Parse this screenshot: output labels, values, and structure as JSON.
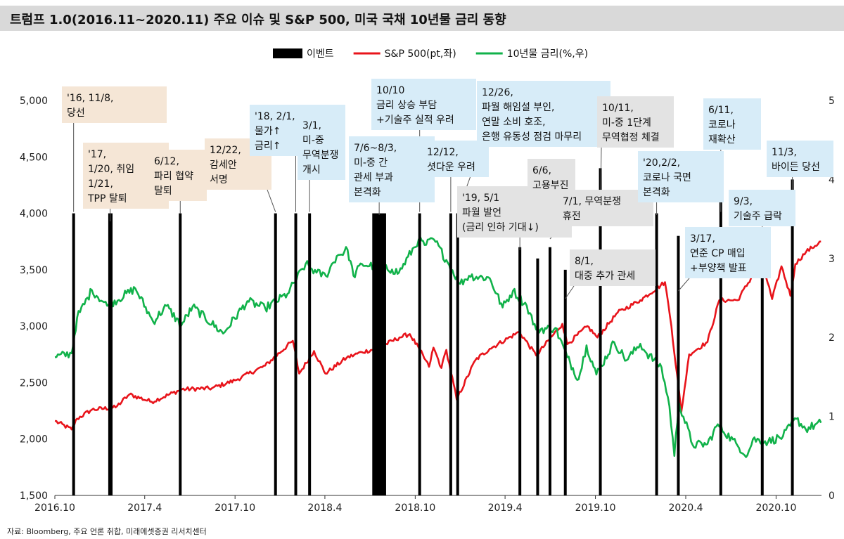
{
  "title": "트럼프 1.0(2016.11~2020.11) 주요 이슈 및 S&P 500, 미국 국채 10년물 금리 동향",
  "source": "자료: Bloomberg, 주요 언론 취합, 미래에셋증권 리서치센터",
  "colors": {
    "sp500": "#e8141b",
    "rate": "#11b24a",
    "event": "#000000",
    "box_tan": "#f5e6d6",
    "box_blue": "#d7ecf8",
    "box_gray": "#e3e3e3",
    "title_bg": "#d9d9d9"
  },
  "chart_data": {
    "type": "line",
    "legend": [
      {
        "key": "event",
        "label": "이벤트"
      },
      {
        "key": "sp500",
        "label": "S&P 500(pt,좌)"
      },
      {
        "key": "rate",
        "label": "10년물 금리(%,우)"
      }
    ],
    "x_range": [
      "2016-10",
      "2021-01"
    ],
    "x_ticks": [
      {
        "date": "2016-10",
        "label": "2016.10"
      },
      {
        "date": "2017-04",
        "label": "2017.4"
      },
      {
        "date": "2017-10",
        "label": "2017.10"
      },
      {
        "date": "2018-04",
        "label": "2018.4"
      },
      {
        "date": "2018-10",
        "label": "2018.10"
      },
      {
        "date": "2019-04",
        "label": "2019.4"
      },
      {
        "date": "2019-10",
        "label": "2019.10"
      },
      {
        "date": "2020-04",
        "label": "2020.4"
      },
      {
        "date": "2020-10",
        "label": "2020.10"
      }
    ],
    "y_left": {
      "min": 1500,
      "max": 5000,
      "ticks": [
        "1,500",
        "2,000",
        "2,500",
        "3,000",
        "3,500",
        "4,000",
        "4,500",
        "5,000"
      ]
    },
    "y_right": {
      "min": 0,
      "max": 5,
      "ticks": [
        "0",
        "1",
        "2",
        "3",
        "4",
        "5"
      ]
    },
    "series": [
      {
        "name": "S&P 500",
        "axis": "left",
        "key": "sp500",
        "points": [
          [
            "2016-10-01",
            2160
          ],
          [
            "2016-11-04",
            2085
          ],
          [
            "2016-11-15",
            2180
          ],
          [
            "2016-12-15",
            2260
          ],
          [
            "2017-02-01",
            2280
          ],
          [
            "2017-03-01",
            2395
          ],
          [
            "2017-04-15",
            2330
          ],
          [
            "2017-06-15",
            2440
          ],
          [
            "2017-08-15",
            2450
          ],
          [
            "2017-10-01",
            2520
          ],
          [
            "2017-12-01",
            2650
          ],
          [
            "2018-01-26",
            2870
          ],
          [
            "2018-02-08",
            2580
          ],
          [
            "2018-03-10",
            2780
          ],
          [
            "2018-04-02",
            2580
          ],
          [
            "2018-05-15",
            2720
          ],
          [
            "2018-06-15",
            2770
          ],
          [
            "2018-07-15",
            2800
          ],
          [
            "2018-08-30",
            2900
          ],
          [
            "2018-09-20",
            2930
          ],
          [
            "2018-10-10",
            2790
          ],
          [
            "2018-10-29",
            2640
          ],
          [
            "2018-11-07",
            2810
          ],
          [
            "2018-11-23",
            2630
          ],
          [
            "2018-12-03",
            2790
          ],
          [
            "2018-12-24",
            2350
          ],
          [
            "2019-01-31",
            2700
          ],
          [
            "2019-03-01",
            2800
          ],
          [
            "2019-04-30",
            2950
          ],
          [
            "2019-06-03",
            2740
          ],
          [
            "2019-07-26",
            3020
          ],
          [
            "2019-08-05",
            2840
          ],
          [
            "2019-09-15",
            3000
          ],
          [
            "2019-10-05",
            2900
          ],
          [
            "2019-11-15",
            3120
          ],
          [
            "2019-12-31",
            3230
          ],
          [
            "2020-02-19",
            3390
          ],
          [
            "2020-03-03",
            3000
          ],
          [
            "2020-03-23",
            2240
          ],
          [
            "2020-04-08",
            2750
          ],
          [
            "2020-05-15",
            2860
          ],
          [
            "2020-06-08",
            3230
          ],
          [
            "2020-07-15",
            3230
          ],
          [
            "2020-09-02",
            3580
          ],
          [
            "2020-09-23",
            3240
          ],
          [
            "2020-10-12",
            3530
          ],
          [
            "2020-10-30",
            3270
          ],
          [
            "2020-11-09",
            3550
          ],
          [
            "2020-12-01",
            3660
          ],
          [
            "2020-12-31",
            3750
          ]
        ]
      },
      {
        "name": "10년물 금리",
        "axis": "right",
        "key": "rate",
        "points": [
          [
            "2016-10-01",
            1.75
          ],
          [
            "2016-11-04",
            1.8
          ],
          [
            "2016-11-15",
            2.25
          ],
          [
            "2016-12-15",
            2.6
          ],
          [
            "2017-01-15",
            2.4
          ],
          [
            "2017-03-13",
            2.62
          ],
          [
            "2017-04-18",
            2.2
          ],
          [
            "2017-05-15",
            2.4
          ],
          [
            "2017-06-14",
            2.15
          ],
          [
            "2017-07-07",
            2.39
          ],
          [
            "2017-09-07",
            2.05
          ],
          [
            "2017-10-26",
            2.46
          ],
          [
            "2017-12-01",
            2.37
          ],
          [
            "2018-01-15",
            2.55
          ],
          [
            "2018-02-21",
            2.93
          ],
          [
            "2018-03-15",
            2.82
          ],
          [
            "2018-04-03",
            2.78
          ],
          [
            "2018-04-25",
            3.03
          ],
          [
            "2018-05-17",
            3.11
          ],
          [
            "2018-05-29",
            2.78
          ],
          [
            "2018-06-15",
            2.93
          ],
          [
            "2018-08-15",
            2.86
          ],
          [
            "2018-08-29",
            2.82
          ],
          [
            "2018-10-08",
            3.24
          ],
          [
            "2018-10-20",
            3.17
          ],
          [
            "2018-11-08",
            3.24
          ],
          [
            "2018-12-03",
            2.98
          ],
          [
            "2018-12-31",
            2.68
          ],
          [
            "2019-01-18",
            2.78
          ],
          [
            "2019-03-01",
            2.75
          ],
          [
            "2019-03-27",
            2.38
          ],
          [
            "2019-04-17",
            2.59
          ],
          [
            "2019-05-15",
            2.4
          ],
          [
            "2019-06-03",
            2.1
          ],
          [
            "2019-07-12",
            2.12
          ],
          [
            "2019-08-05",
            1.75
          ],
          [
            "2019-08-28",
            1.47
          ],
          [
            "2019-09-13",
            1.9
          ],
          [
            "2019-10-03",
            1.53
          ],
          [
            "2019-11-08",
            1.94
          ],
          [
            "2019-12-03",
            1.71
          ],
          [
            "2019-12-31",
            1.92
          ],
          [
            "2020-01-10",
            1.82
          ],
          [
            "2020-02-12",
            1.62
          ],
          [
            "2020-02-28",
            1.13
          ],
          [
            "2020-03-09",
            0.5
          ],
          [
            "2020-03-18",
            1.18
          ],
          [
            "2020-04-15",
            0.64
          ],
          [
            "2020-05-15",
            0.65
          ],
          [
            "2020-06-05",
            0.9
          ],
          [
            "2020-07-15",
            0.63
          ],
          [
            "2020-08-04",
            0.51
          ],
          [
            "2020-08-15",
            0.71
          ],
          [
            "2020-09-15",
            0.68
          ],
          [
            "2020-10-15",
            0.75
          ],
          [
            "2020-11-11",
            0.97
          ],
          [
            "2020-11-30",
            0.84
          ],
          [
            "2020-12-31",
            0.92
          ]
        ]
      }
    ],
    "events": [
      {
        "date": "2016-11-08",
        "top": 4000
      },
      {
        "date": "2017-01-20",
        "top": 4000
      },
      {
        "date": "2017-01-23",
        "top": 4000
      },
      {
        "date": "2017-06-12",
        "top": 4000
      },
      {
        "date": "2017-12-22",
        "top": 4000
      },
      {
        "date": "2018-02-01",
        "top": 4000
      },
      {
        "date": "2018-03-01",
        "top": 4000
      },
      {
        "date": "2018-07-06",
        "end": "2018-08-03",
        "top": 4000
      },
      {
        "date": "2018-10-10",
        "top": 4000
      },
      {
        "date": "2018-12-12",
        "top": 4000
      },
      {
        "date": "2018-12-26",
        "top": 4000
      },
      {
        "date": "2019-05-01",
        "top": 3700
      },
      {
        "date": "2019-06-06",
        "top": 3600
      },
      {
        "date": "2019-07-01",
        "top": 3700
      },
      {
        "date": "2019-08-01",
        "top": 3500
      },
      {
        "date": "2019-10-11",
        "top": 4400
      },
      {
        "date": "2020-02-02",
        "top": 4000
      },
      {
        "date": "2020-03-17",
        "top": 3800
      },
      {
        "date": "2020-06-11",
        "top": 4500
      },
      {
        "date": "2020-09-03",
        "top": 3800
      },
      {
        "date": "2020-11-03",
        "top": 4300
      }
    ],
    "annotations": [
      {
        "lines": [
          "'16, 11/8,",
          "당선"
        ],
        "color": "box_tan",
        "event": "2016-11-08"
      },
      {
        "lines": [
          "'17,",
          "1/20, 취임",
          "1/21,",
          "TPP 탈퇴"
        ],
        "color": "box_tan",
        "event": "2017-01-21"
      },
      {
        "lines": [
          "6/12,",
          "파리 협약",
          "탈퇴"
        ],
        "color": "box_tan",
        "event": "2017-06-12"
      },
      {
        "lines": [
          "12/22,",
          "감세안",
          "서명"
        ],
        "color": "box_tan",
        "event": "2017-12-22"
      },
      {
        "lines": [
          "'18, 2/1,",
          "물가↑",
          "금리↑"
        ],
        "color": "box_blue",
        "event": "2018-02-01"
      },
      {
        "lines": [
          "3/1,",
          "미-중",
          "무역분쟁",
          "개시"
        ],
        "color": "box_blue",
        "event": "2018-03-01"
      },
      {
        "lines": [
          "7/6~8/3,",
          "미-중 간",
          "관세 부과",
          "본격화"
        ],
        "color": "box_blue",
        "event": "2018-07-20"
      },
      {
        "lines": [
          "10/10",
          "금리 상승 부담",
          "+기술주 실적 우려"
        ],
        "color": "box_blue",
        "event": "2018-10-10"
      },
      {
        "lines": [
          "12/12,",
          "셧다운 우려"
        ],
        "color": "box_blue",
        "event": "2018-12-12"
      },
      {
        "lines": [
          "12/26,",
          "파월 해임설 부인,",
          "연말 소비 호조,",
          "은행 유동성 점검 마무리"
        ],
        "color": "box_blue",
        "event": "2018-12-26"
      },
      {
        "lines": [
          "'19, 5/1",
          "파월 발언",
          "(금리 인하 기대↓)"
        ],
        "color": "box_gray",
        "event": "2019-05-01"
      },
      {
        "lines": [
          "6/6,",
          "고용부진"
        ],
        "color": "box_gray",
        "event": "2019-06-06"
      },
      {
        "lines": [
          "7/1, 무역분쟁",
          "휴전"
        ],
        "color": "box_gray",
        "event": "2019-07-01"
      },
      {
        "lines": [
          "8/1,",
          "대중 추가 관세"
        ],
        "color": "box_gray",
        "event": "2019-08-01"
      },
      {
        "lines": [
          "10/11,",
          "미-중 1단계",
          "무역협정 체결"
        ],
        "color": "box_gray",
        "event": "2019-10-11"
      },
      {
        "lines": [
          "'20,2/2,",
          "코로나 국면",
          "본격화"
        ],
        "color": "box_blue",
        "event": "2020-02-02"
      },
      {
        "lines": [
          "3/17,",
          "연준 CP 매입",
          "+부양책 발표"
        ],
        "color": "box_blue",
        "event": "2020-03-17"
      },
      {
        "lines": [
          "6/11,",
          "코로나",
          "재확산"
        ],
        "color": "box_blue",
        "event": "2020-06-11"
      },
      {
        "lines": [
          "9/3,",
          "기술주 급락"
        ],
        "color": "box_blue",
        "event": "2020-09-03"
      },
      {
        "lines": [
          "11/3,",
          "바이든 당선"
        ],
        "color": "box_blue",
        "event": "2020-11-03"
      }
    ]
  }
}
